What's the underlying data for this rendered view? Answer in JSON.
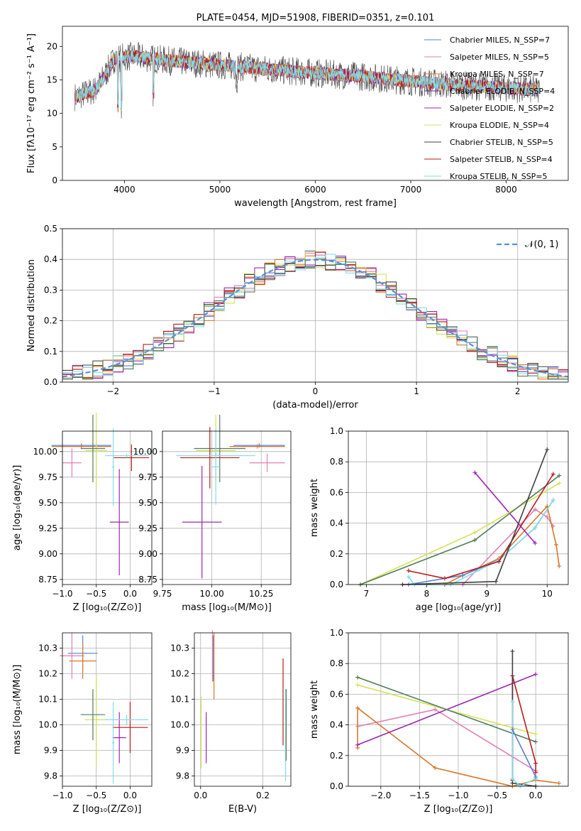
{
  "chart_data": [
    {
      "type": "line",
      "title": "PLATE=0454, MJD=51908, FIBERID=0351, z=0.101",
      "xlabel": "wavelength [Angstrom, rest frame]",
      "ylabel": "Flux [fλ10⁻¹⁷ erg cm⁻² s⁻¹ A⁻¹]",
      "xlim": [
        3350,
        8650
      ],
      "ylim": [
        0,
        23
      ],
      "xticks": [
        "4000",
        "5000",
        "6000",
        "7000",
        "8000"
      ],
      "yticks": [
        "0",
        "5",
        "10",
        "15",
        "20"
      ],
      "legend_position": "top-right",
      "series": [
        {
          "name": "Chabrier MILES, N_SSP=7",
          "color": "#5b7fd1"
        },
        {
          "name": "Salpeter MILES, N_SSP=5",
          "color": "#e07fb5"
        },
        {
          "name": "Kroupa MILES, N_SSP=7",
          "color": "#d9772b"
        },
        {
          "name": "Chabrier ELODIE, N_SSP=4",
          "color": "#7b1fa2"
        },
        {
          "name": "Salpeter ELODIE, N_SSP=2",
          "color": "#9c27b0"
        },
        {
          "name": "Kroupa ELODIE, N_SSP=4",
          "color": "#d4e157"
        },
        {
          "name": "Chabrier STELIB, N_SSP=5",
          "color": "#404040"
        },
        {
          "name": "Salpeter STELIB, N_SSP=4",
          "color": "#b71c1c"
        },
        {
          "name": "Kroupa STELIB, N_SSP=5",
          "color": "#80deea"
        }
      ],
      "continuum_profile": {
        "x": [
          3500,
          3700,
          3800,
          3900,
          4100,
          4500,
          5000,
          5500,
          6000,
          6500,
          7000,
          7500,
          8000,
          8300
        ],
        "y": [
          12.5,
          13.5,
          15.8,
          18.3,
          18.5,
          17.8,
          17.2,
          16.6,
          16.0,
          15.5,
          14.8,
          14.2,
          13.8,
          13.5
        ]
      }
    },
    {
      "type": "bar",
      "xlabel": "(data-model)/error",
      "ylabel": "Normed distribution",
      "xlim": [
        -2.5,
        2.5
      ],
      "ylim": [
        0,
        0.5
      ],
      "xticks": [
        "−2",
        "−1",
        "0",
        "1",
        "2"
      ],
      "yticks": [
        "0.0",
        "0.1",
        "0.2",
        "0.3",
        "0.4",
        "0.5"
      ],
      "legend": "𝒩(0, 1)",
      "reference_curve": {
        "type": "normal",
        "mean": 0,
        "sigma": 1,
        "color": "#5b8fd8"
      },
      "bin_width": 0.1,
      "bin_start": -2.5
    },
    {
      "type": "scatter",
      "xlabel": "Z [log₁₀(Z/Z⊙)]",
      "ylabel": "age  [log₁₀(age/yr)]",
      "xlim": [
        -1.0,
        0.32
      ],
      "ylim": [
        8.7,
        10.2
      ],
      "xticks": [
        "−1.0",
        "−0.5",
        "0.0"
      ],
      "yticks": [
        "8.75",
        "9.00",
        "9.25",
        "9.50",
        "9.75",
        "10.00"
      ],
      "points": [
        {
          "x": -0.72,
          "y": 10.06,
          "xerr": 0.44,
          "yerr": 0.02,
          "color": "#5b7fd1"
        },
        {
          "x": -0.86,
          "y": 9.89,
          "xerr": 0.14,
          "yerr": 0.14,
          "color": "#e07fb5"
        },
        {
          "x": -0.72,
          "y": 10.05,
          "xerr": 0.44,
          "yerr": 0.02,
          "color": "#d9772b"
        },
        {
          "x": -0.16,
          "y": 9.31,
          "xerr": 0.14,
          "yerr": 0.52,
          "color": "#9c27b0"
        },
        {
          "x": -0.5,
          "y": 10.01,
          "xerr": 0.16,
          "yerr": 0.37,
          "color": "#d4e157"
        },
        {
          "x": -0.55,
          "y": 10.03,
          "xerr": 0.18,
          "yerr": 0.33,
          "color": "#527d5a"
        },
        {
          "x": 0.02,
          "y": 9.94,
          "xerr": 0.26,
          "yerr": 0.13,
          "color": "#b71c1c"
        },
        {
          "x": -0.05,
          "y": 9.96,
          "xerr": 0.32,
          "yerr": 0.02,
          "color": "#80deea"
        },
        {
          "x": -0.25,
          "y": 9.85,
          "xerr": 0.02,
          "yerr": 0.38,
          "color": "#80deea"
        }
      ]
    },
    {
      "type": "scatter",
      "xlabel": "mass [log₁₀(M/M⊙)]",
      "ylabel": "",
      "xlim": [
        9.75,
        10.4
      ],
      "ylim": [
        8.7,
        10.2
      ],
      "xticks": [
        "9.75",
        "10.00",
        "10.25"
      ],
      "yticks": [
        "8.75",
        "9.00",
        "9.25",
        "9.50",
        "9.75",
        "10.00"
      ],
      "points": [
        {
          "x": 10.24,
          "y": 10.06,
          "xerr": 0.13,
          "yerr": 0.02,
          "color": "#5b7fd1"
        },
        {
          "x": 10.28,
          "y": 9.89,
          "xerr": 0.09,
          "yerr": 0.09,
          "color": "#e07fb5"
        },
        {
          "x": 10.23,
          "y": 10.05,
          "xerr": 0.14,
          "yerr": 0.02,
          "color": "#d9772b"
        },
        {
          "x": 9.95,
          "y": 9.31,
          "xerr": 0.1,
          "yerr": 0.55,
          "color": "#9c27b0"
        },
        {
          "x": 10.02,
          "y": 10.01,
          "xerr": 0.1,
          "yerr": 0.35,
          "color": "#d4e157"
        },
        {
          "x": 10.04,
          "y": 10.03,
          "xerr": 0.13,
          "yerr": 0.33,
          "color": "#527d5a"
        },
        {
          "x": 9.99,
          "y": 9.94,
          "xerr": 0.15,
          "yerr": 0.3,
          "color": "#b71c1c"
        },
        {
          "x": 10.02,
          "y": 9.96,
          "xerr": 0.2,
          "yerr": 0.02,
          "color": "#80deea"
        },
        {
          "x": 10.02,
          "y": 9.85,
          "xerr": 0.02,
          "yerr": 0.37,
          "color": "#80deea"
        }
      ]
    },
    {
      "type": "line",
      "xlabel": "age  [log₁₀(age/yr)]",
      "ylabel": "mass weight",
      "xlim": [
        6.7,
        10.35
      ],
      "ylim": [
        0,
        1.0
      ],
      "xticks": [
        "7",
        "8",
        "9",
        "10"
      ],
      "yticks": [
        "0.0",
        "0.2",
        "0.4",
        "0.6",
        "0.8",
        "1.0"
      ],
      "series": [
        {
          "color": "#e07fb5",
          "x": [
            8.6,
            9.8,
            10.0,
            10.1
          ],
          "y": [
            0.0,
            0.49,
            0.44,
            0.38
          ]
        },
        {
          "color": "#d9772b",
          "x": [
            8.3,
            8.6,
            9.2,
            10.0,
            10.15,
            10.2
          ],
          "y": [
            0.0,
            0.06,
            0.17,
            0.51,
            0.26,
            0.12
          ]
        },
        {
          "color": "#5b7fd1",
          "x": [
            7.7,
            8.6,
            9.2,
            9.8,
            10.1
          ],
          "y": [
            0.0,
            0.06,
            0.16,
            0.37,
            0.55
          ]
        },
        {
          "color": "#80deea",
          "x": [
            7.7,
            7.8,
            8.4,
            9.2,
            9.8,
            10.1
          ],
          "y": [
            0.05,
            0.0,
            0.0,
            0.16,
            0.37,
            0.55
          ]
        },
        {
          "color": "#9c27b0",
          "x": [
            8.8,
            9.8
          ],
          "y": [
            0.73,
            0.27
          ]
        },
        {
          "color": "#d4e157",
          "x": [
            6.9,
            8.8,
            10.2
          ],
          "y": [
            0.0,
            0.34,
            0.66
          ]
        },
        {
          "color": "#527d5a",
          "x": [
            6.9,
            8.8,
            10.2
          ],
          "y": [
            0.0,
            0.29,
            0.71
          ]
        },
        {
          "color": "#b71c1c",
          "x": [
            7.7,
            8.3,
            9.2,
            10.1
          ],
          "y": [
            0.09,
            0.04,
            0.15,
            0.72
          ]
        },
        {
          "color": "#404040",
          "x": [
            7.6,
            9.15,
            10.0
          ],
          "y": [
            0.0,
            0.02,
            0.88
          ]
        }
      ]
    },
    {
      "type": "scatter",
      "xlabel": "Z [log₁₀(Z/Z⊙)]",
      "ylabel": "mass [log₁₀(M/M⊙)]",
      "xlim": [
        -1.0,
        0.32
      ],
      "ylim": [
        9.76,
        10.36
      ],
      "xticks": [
        "−1.0",
        "−0.5",
        "0.0"
      ],
      "yticks": [
        "9.8",
        "9.9",
        "10.0",
        "10.1",
        "10.2",
        "10.3"
      ],
      "points": [
        {
          "x": -0.7,
          "y": 10.28,
          "xerr": 0.22,
          "yerr": 0.07,
          "color": "#5b7fd1"
        },
        {
          "x": -0.86,
          "y": 10.27,
          "xerr": 0.18,
          "yerr": 0.09,
          "color": "#e07fb5"
        },
        {
          "x": -0.7,
          "y": 10.25,
          "xerr": 0.2,
          "yerr": 0.07,
          "color": "#d9772b"
        },
        {
          "x": -0.16,
          "y": 9.95,
          "xerr": 0.1,
          "yerr": 0.1,
          "color": "#9c27b0"
        },
        {
          "x": -0.5,
          "y": 10.02,
          "xerr": 0.17,
          "yerr": 0.18,
          "color": "#d4e157"
        },
        {
          "x": -0.55,
          "y": 10.04,
          "xerr": 0.18,
          "yerr": 0.1,
          "color": "#527d5a"
        },
        {
          "x": 0.0,
          "y": 9.99,
          "xerr": 0.26,
          "yerr": 0.1,
          "color": "#b71c1c"
        },
        {
          "x": -0.05,
          "y": 10.02,
          "xerr": 0.32,
          "yerr": 0.02,
          "color": "#80deea"
        },
        {
          "x": -0.25,
          "y": 9.93,
          "xerr": 0.02,
          "yerr": 0.16,
          "color": "#80deea"
        }
      ]
    },
    {
      "type": "scatter",
      "xlabel": "E(B-V)",
      "ylabel": "",
      "xlim": [
        -0.02,
        0.29
      ],
      "ylim": [
        9.76,
        10.36
      ],
      "xticks": [
        "0.0",
        "0.2"
      ],
      "yticks": [
        "9.8",
        "9.9",
        "10.0",
        "10.1",
        "10.2",
        "10.3"
      ],
      "points": [
        {
          "x": 0.04,
          "y": 10.26,
          "yerr": 0.09,
          "color": "#5b7fd1"
        },
        {
          "x": 0.038,
          "y": 10.27,
          "yerr": 0.1,
          "color": "#e07fb5"
        },
        {
          "x": 0.043,
          "y": 10.23,
          "yerr": 0.13,
          "color": "#d9772b"
        },
        {
          "x": 0.018,
          "y": 9.95,
          "yerr": 0.1,
          "color": "#9c27b0"
        },
        {
          "x": 0.002,
          "y": 9.97,
          "yerr": 0.14,
          "color": "#d4e157"
        },
        {
          "x": 0.265,
          "y": 10.09,
          "yerr": 0.17,
          "color": "#b71c1c"
        },
        {
          "x": 0.273,
          "y": 9.96,
          "yerr": 0.18,
          "color": "#80deea"
        },
        {
          "x": 0.275,
          "y": 10.0,
          "yerr": 0.14,
          "color": "#527d5a"
        }
      ]
    },
    {
      "type": "line",
      "xlabel": "Z [log₁₀(Z/Z⊙)]",
      "ylabel": "mass weight",
      "xlim": [
        -2.42,
        0.42
      ],
      "ylim": [
        0,
        1.0
      ],
      "xticks": [
        "−2.0",
        "−1.5",
        "−1.0",
        "−0.5",
        "0.0"
      ],
      "yticks": [
        "0.0",
        "0.2",
        "0.4",
        "0.6",
        "0.8",
        "1.0"
      ],
      "series": [
        {
          "color": "#e07fb5",
          "x": [
            -2.3,
            -1.3,
            0.0
          ],
          "y": [
            0.39,
            0.5,
            0.1
          ]
        },
        {
          "color": "#d9772b",
          "x": [
            -2.3,
            -2.3,
            -1.3,
            -0.3,
            0.0,
            0.3
          ],
          "y": [
            0.25,
            0.51,
            0.12,
            0.0,
            0.04,
            0.02
          ]
        },
        {
          "color": "#9c27b0",
          "x": [
            -2.3,
            0.0
          ],
          "y": [
            0.27,
            0.73
          ]
        },
        {
          "color": "#d4e157",
          "x": [
            -2.3,
            0.0
          ],
          "y": [
            0.66,
            0.34
          ]
        },
        {
          "color": "#527d5a",
          "x": [
            -2.3,
            0.0
          ],
          "y": [
            0.71,
            0.29
          ]
        },
        {
          "color": "#b71c1c",
          "x": [
            -0.3,
            -0.3,
            0.0,
            0.0
          ],
          "y": [
            0.04,
            0.72,
            0.15,
            0.09
          ]
        },
        {
          "color": "#404040",
          "x": [
            -0.3,
            -0.3,
            0.0
          ],
          "y": [
            0.88,
            0.02,
            0.0
          ]
        },
        {
          "color": "#80deea",
          "x": [
            -0.3,
            -0.3,
            -0.2,
            0.0
          ],
          "y": [
            0.55,
            0.05,
            0.0,
            0.05
          ]
        },
        {
          "color": "#5b7fd1",
          "x": [
            -0.3,
            0.0
          ],
          "y": [
            0.37,
            0.06
          ]
        }
      ]
    }
  ]
}
